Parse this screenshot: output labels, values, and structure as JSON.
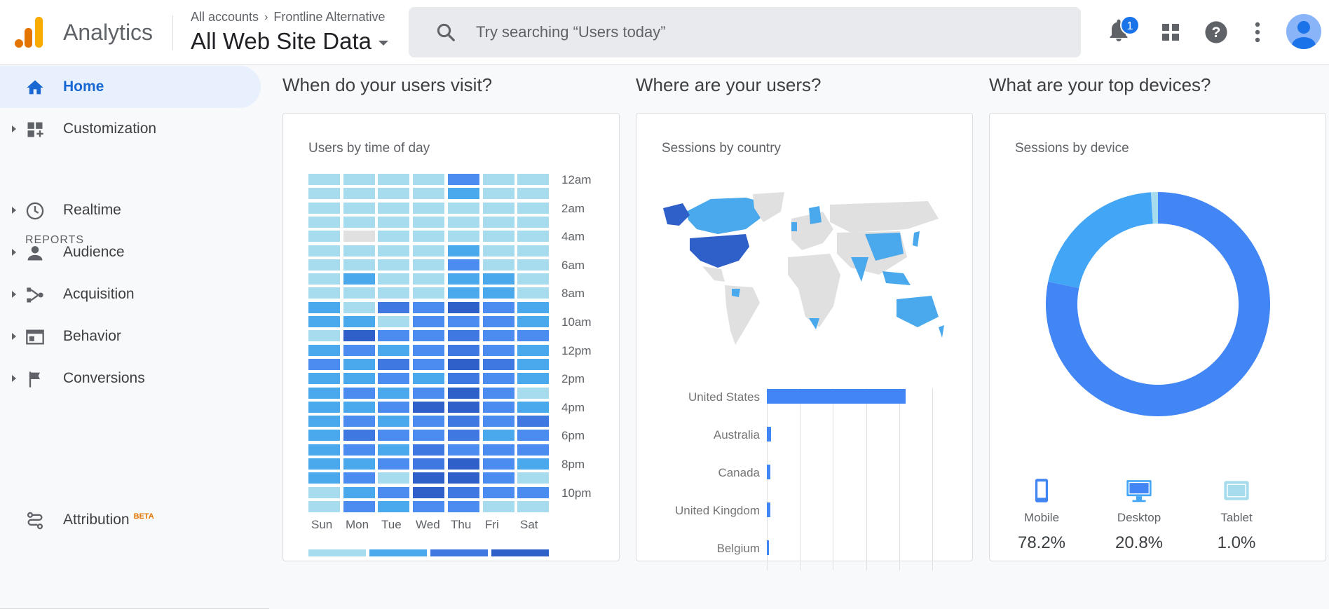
{
  "header": {
    "app_name": "Analytics",
    "breadcrumb": [
      "All accounts",
      "Frontline Alternative"
    ],
    "view_name": "All Web Site Data",
    "search_placeholder": "Try searching “Users today”",
    "notification_count": "1"
  },
  "sidebar": {
    "items": [
      {
        "label": "Home",
        "icon": "home-icon",
        "active": true
      },
      {
        "label": "Customization",
        "icon": "customization-icon"
      },
      {
        "label": "Realtime",
        "icon": "clock-icon"
      },
      {
        "label": "Audience",
        "icon": "person-icon"
      },
      {
        "label": "Acquisition",
        "icon": "acquisition-icon"
      },
      {
        "label": "Behavior",
        "icon": "behavior-icon"
      },
      {
        "label": "Conversions",
        "icon": "flag-icon"
      },
      {
        "label": "Attribution",
        "icon": "attribution-icon"
      }
    ],
    "reports_label": "REPORTS",
    "beta_label": "BETA"
  },
  "sections": {
    "when": "When do your users visit?",
    "where": "Where are your users?",
    "devices": "What are your top devices?"
  },
  "cards": {
    "time": {
      "title": "Users by time of day",
      "days": [
        "Sun",
        "Mon",
        "Tue",
        "Wed",
        "Thu",
        "Fri",
        "Sat"
      ],
      "hour_labels": [
        "12am",
        "2am",
        "4am",
        "6am",
        "8am",
        "10am",
        "12pm",
        "2pm",
        "4pm",
        "6pm",
        "8pm",
        "10pm"
      ]
    },
    "country": {
      "title": "Sessions by country",
      "countries": [
        "United States",
        "Australia",
        "Canada",
        "United Kingdom",
        "Belgium"
      ]
    },
    "device": {
      "title": "Sessions by device",
      "devices": [
        {
          "label": "Mobile",
          "value": "78.2%",
          "icon": "mobile-icon"
        },
        {
          "label": "Desktop",
          "value": "20.8%",
          "icon": "desktop-icon"
        },
        {
          "label": "Tablet",
          "value": "1.0%",
          "icon": "tablet-icon"
        }
      ]
    }
  },
  "chart_data": [
    {
      "type": "heatmap",
      "title": "Users by time of day",
      "x": [
        "Sun",
        "Mon",
        "Tue",
        "Wed",
        "Thu",
        "Fri",
        "Sat"
      ],
      "y_tick_labels": [
        "12am",
        "2am",
        "4am",
        "6am",
        "8am",
        "10am",
        "12pm",
        "2pm",
        "4pm",
        "6pm",
        "8pm",
        "10pm"
      ],
      "note_levels": "intensity levels 0-5 per hour (rows 0-23), columns Sun..Sat",
      "levels": [
        [
          1,
          1,
          1,
          1,
          3,
          1,
          1
        ],
        [
          1,
          1,
          1,
          1,
          2,
          1,
          1
        ],
        [
          1,
          1,
          1,
          1,
          1,
          1,
          1
        ],
        [
          1,
          1,
          1,
          1,
          1,
          1,
          1
        ],
        [
          1,
          0,
          1,
          1,
          1,
          1,
          1
        ],
        [
          1,
          1,
          1,
          1,
          2,
          1,
          1
        ],
        [
          1,
          1,
          1,
          1,
          3,
          1,
          1
        ],
        [
          1,
          2,
          1,
          1,
          2,
          2,
          1
        ],
        [
          1,
          1,
          1,
          1,
          2,
          2,
          1
        ],
        [
          2,
          1,
          4,
          3,
          5,
          3,
          2
        ],
        [
          2,
          2,
          1,
          3,
          3,
          3,
          2
        ],
        [
          1,
          5,
          3,
          3,
          4,
          3,
          3
        ],
        [
          2,
          3,
          2,
          3,
          4,
          3,
          2
        ],
        [
          3,
          2,
          4,
          3,
          5,
          4,
          2
        ],
        [
          2,
          2,
          3,
          2,
          4,
          3,
          2
        ],
        [
          2,
          3,
          2,
          3,
          5,
          3,
          1
        ],
        [
          2,
          2,
          3,
          5,
          5,
          3,
          2
        ],
        [
          2,
          3,
          2,
          3,
          4,
          3,
          4
        ],
        [
          2,
          4,
          3,
          3,
          4,
          2,
          3
        ],
        [
          2,
          3,
          2,
          4,
          3,
          3,
          3
        ],
        [
          2,
          2,
          3,
          4,
          5,
          3,
          2
        ],
        [
          2,
          3,
          1,
          5,
          5,
          3,
          1
        ],
        [
          1,
          2,
          3,
          5,
          4,
          3,
          3
        ],
        [
          1,
          3,
          2,
          3,
          3,
          1,
          1
        ]
      ]
    },
    {
      "type": "bar",
      "title": "Sessions by country",
      "categories": [
        "United States",
        "Australia",
        "Canada",
        "United Kingdom",
        "Belgium"
      ],
      "values": [
        84,
        2.5,
        2,
        2,
        1
      ],
      "xlim": [
        0,
        100
      ]
    },
    {
      "type": "pie",
      "title": "Sessions by device",
      "categories": [
        "Mobile",
        "Desktop",
        "Tablet"
      ],
      "values": [
        78.2,
        20.8,
        1.0
      ]
    }
  ],
  "colors": {
    "heat_levels": [
      "#e0e0e0",
      "#a7dbee",
      "#4aa8ec",
      "#4b8cf0",
      "#3f78e0",
      "#2f5fc8"
    ],
    "mobile": "#4285f4",
    "desktop": "#42a5f5",
    "tablet": "#a7dbee",
    "accent": "#1a73e8"
  }
}
